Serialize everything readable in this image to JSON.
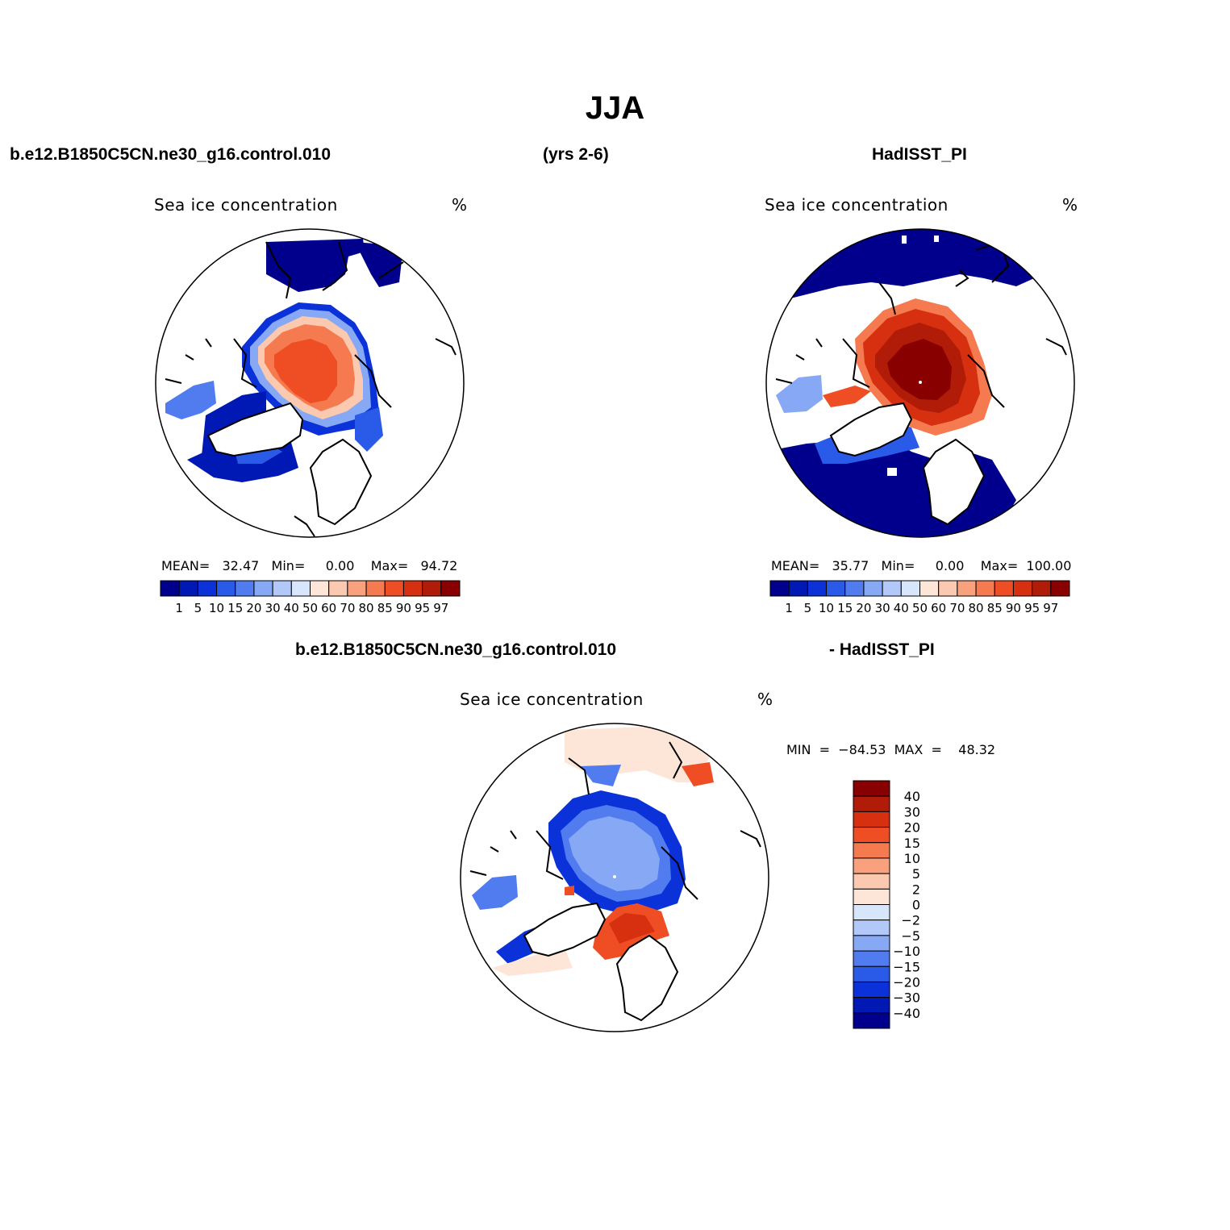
{
  "title": "JJA",
  "headers": {
    "case": "b.e12.B1850C5CN.ne30_g16.control.010",
    "years": "(yrs 2-6)",
    "obs": "HadISST_PI",
    "diff_left": "b.e12.B1850C5CN.ne30_g16.control.010",
    "diff_right": "- HadISST_PI"
  },
  "panels": {
    "model": {
      "var": "Sea ice concentration",
      "units": "%",
      "stats": "MEAN=   32.47   Min=     0.00    Max=   94.72"
    },
    "obs": {
      "var": "Sea ice concentration",
      "units": "%",
      "stats": "MEAN=   35.77   Min=     0.00    Max=  100.00"
    },
    "diff": {
      "var": "Sea ice concentration",
      "units": "%",
      "stats": "MIN  =  −84.53  MAX  =    48.32"
    }
  },
  "colorbar_abs": {
    "labels": [
      "1",
      "5",
      "10",
      "15",
      "20",
      "30",
      "40",
      "50",
      "60",
      "70",
      "80",
      "85",
      "90",
      "95",
      "97"
    ],
    "colors": [
      "#00008c",
      "#0018b4",
      "#0a32d8",
      "#2a5ae8",
      "#507cf0",
      "#86a8f5",
      "#b2c8f8",
      "#d8e6fb",
      "#fde6d8",
      "#fbc8b0",
      "#f9a07c",
      "#f57a50",
      "#ef4e24",
      "#d63010",
      "#b01c08",
      "#880000"
    ]
  },
  "colorbar_diff": {
    "labels": [
      "40",
      "30",
      "20",
      "15",
      "10",
      "5",
      "2",
      "0",
      "−2",
      "−5",
      "−10",
      "−15",
      "−20",
      "−30",
      "−40"
    ],
    "colors": [
      "#880000",
      "#b01c08",
      "#d63010",
      "#ef4e24",
      "#f57a50",
      "#f9a07c",
      "#fbc8b0",
      "#fde6d8",
      "#d8e6fb",
      "#b2c8f8",
      "#86a8f5",
      "#507cf0",
      "#2a5ae8",
      "#0a32d8",
      "#0018b4",
      "#00008c"
    ]
  }
}
